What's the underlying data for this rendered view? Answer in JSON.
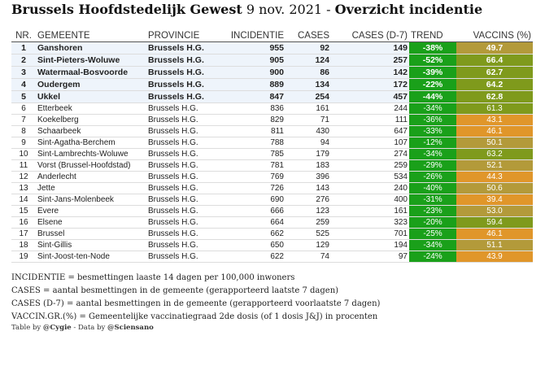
{
  "title": {
    "region": "Brussels Hoofdstedelijk Gewest",
    "date": "9 nov. 2021",
    "separator": "-",
    "subject": "Overzicht incidentie"
  },
  "columns": {
    "nr": "NR.",
    "gemeente": "GEMEENTE",
    "provincie": "PROVINCIE",
    "incidentie": "INCIDENTIE",
    "cases": "CASES",
    "cases_d7": "CASES (D-7)",
    "trend": "TREND",
    "vaccins": "VACCINS (%)"
  },
  "colors": {
    "trend_green": "#1aa01a",
    "vacc_high": "#7f9a1c",
    "vacc_mid": "#b39a3a",
    "vacc_low": "#e0962a",
    "highlight_row": "#eef4fb"
  },
  "rows": [
    {
      "nr": "1",
      "gemeente": "Ganshoren",
      "provincie": "Brussels H.G.",
      "incidentie": "955",
      "cases": "92",
      "cases_d7": "149",
      "trend": "-38%",
      "vaccins": "49.7"
    },
    {
      "nr": "2",
      "gemeente": "Sint-Pieters-Woluwe",
      "provincie": "Brussels H.G.",
      "incidentie": "905",
      "cases": "124",
      "cases_d7": "257",
      "trend": "-52%",
      "vaccins": "66.4"
    },
    {
      "nr": "3",
      "gemeente": "Watermaal-Bosvoorde",
      "provincie": "Brussels H.G.",
      "incidentie": "900",
      "cases": "86",
      "cases_d7": "142",
      "trend": "-39%",
      "vaccins": "62.7"
    },
    {
      "nr": "4",
      "gemeente": "Oudergem",
      "provincie": "Brussels H.G.",
      "incidentie": "889",
      "cases": "134",
      "cases_d7": "172",
      "trend": "-22%",
      "vaccins": "64.2"
    },
    {
      "nr": "5",
      "gemeente": "Ukkel",
      "provincie": "Brussels H.G.",
      "incidentie": "847",
      "cases": "254",
      "cases_d7": "457",
      "trend": "-44%",
      "vaccins": "62.8"
    },
    {
      "nr": "6",
      "gemeente": "Etterbeek",
      "provincie": "Brussels H.G.",
      "incidentie": "836",
      "cases": "161",
      "cases_d7": "244",
      "trend": "-34%",
      "vaccins": "61.3"
    },
    {
      "nr": "7",
      "gemeente": "Koekelberg",
      "provincie": "Brussels H.G.",
      "incidentie": "829",
      "cases": "71",
      "cases_d7": "111",
      "trend": "-36%",
      "vaccins": "43.1"
    },
    {
      "nr": "8",
      "gemeente": "Schaarbeek",
      "provincie": "Brussels H.G.",
      "incidentie": "811",
      "cases": "430",
      "cases_d7": "647",
      "trend": "-33%",
      "vaccins": "46.1"
    },
    {
      "nr": "9",
      "gemeente": "Sint-Agatha-Berchem",
      "provincie": "Brussels H.G.",
      "incidentie": "788",
      "cases": "94",
      "cases_d7": "107",
      "trend": "-12%",
      "vaccins": "50.1"
    },
    {
      "nr": "10",
      "gemeente": "Sint-Lambrechts-Woluwe",
      "provincie": "Brussels H.G.",
      "incidentie": "785",
      "cases": "179",
      "cases_d7": "274",
      "trend": "-34%",
      "vaccins": "63.2"
    },
    {
      "nr": "11",
      "gemeente": "Vorst (Brussel-Hoofdstad)",
      "provincie": "Brussels H.G.",
      "incidentie": "781",
      "cases": "183",
      "cases_d7": "259",
      "trend": "-29%",
      "vaccins": "52.1"
    },
    {
      "nr": "12",
      "gemeente": "Anderlecht",
      "provincie": "Brussels H.G.",
      "incidentie": "769",
      "cases": "396",
      "cases_d7": "534",
      "trend": "-26%",
      "vaccins": "44.3"
    },
    {
      "nr": "13",
      "gemeente": "Jette",
      "provincie": "Brussels H.G.",
      "incidentie": "726",
      "cases": "143",
      "cases_d7": "240",
      "trend": "-40%",
      "vaccins": "50.6"
    },
    {
      "nr": "14",
      "gemeente": "Sint-Jans-Molenbeek",
      "provincie": "Brussels H.G.",
      "incidentie": "690",
      "cases": "276",
      "cases_d7": "400",
      "trend": "-31%",
      "vaccins": "39.4"
    },
    {
      "nr": "15",
      "gemeente": "Evere",
      "provincie": "Brussels H.G.",
      "incidentie": "666",
      "cases": "123",
      "cases_d7": "161",
      "trend": "-23%",
      "vaccins": "53.0"
    },
    {
      "nr": "16",
      "gemeente": "Elsene",
      "provincie": "Brussels H.G.",
      "incidentie": "664",
      "cases": "259",
      "cases_d7": "323",
      "trend": "-20%",
      "vaccins": "59.4"
    },
    {
      "nr": "17",
      "gemeente": "Brussel",
      "provincie": "Brussels H.G.",
      "incidentie": "662",
      "cases": "525",
      "cases_d7": "701",
      "trend": "-25%",
      "vaccins": "46.1"
    },
    {
      "nr": "18",
      "gemeente": "Sint-Gillis",
      "provincie": "Brussels H.G.",
      "incidentie": "650",
      "cases": "129",
      "cases_d7": "194",
      "trend": "-34%",
      "vaccins": "51.1"
    },
    {
      "nr": "19",
      "gemeente": "Sint-Joost-ten-Node",
      "provincie": "Brussels H.G.",
      "incidentie": "622",
      "cases": "74",
      "cases_d7": "97",
      "trend": "-24%",
      "vaccins": "43.9"
    }
  ],
  "notes": [
    "INCIDENTIE = besmettingen laaste 14 dagen per 100,000 inwoners",
    "CASES = aantal besmettingen in de gemeente (gerapporteerd laatste 7 dagen)",
    "CASES (D-7) = aantal besmettingen in de gemeente (gerapporteerd voorlaatste 7 dagen)",
    "VACCIN.GR.(%) = Gemeentelijke vaccinatiegraad 2de dosis (of 1 dosis J&J) in procenten"
  ],
  "credit": {
    "table_by_prefix": "Table by ",
    "table_by_handle": "@Cygie",
    "data_by_prefix": " - Data by ",
    "data_by_handle": "@Sciensano"
  }
}
